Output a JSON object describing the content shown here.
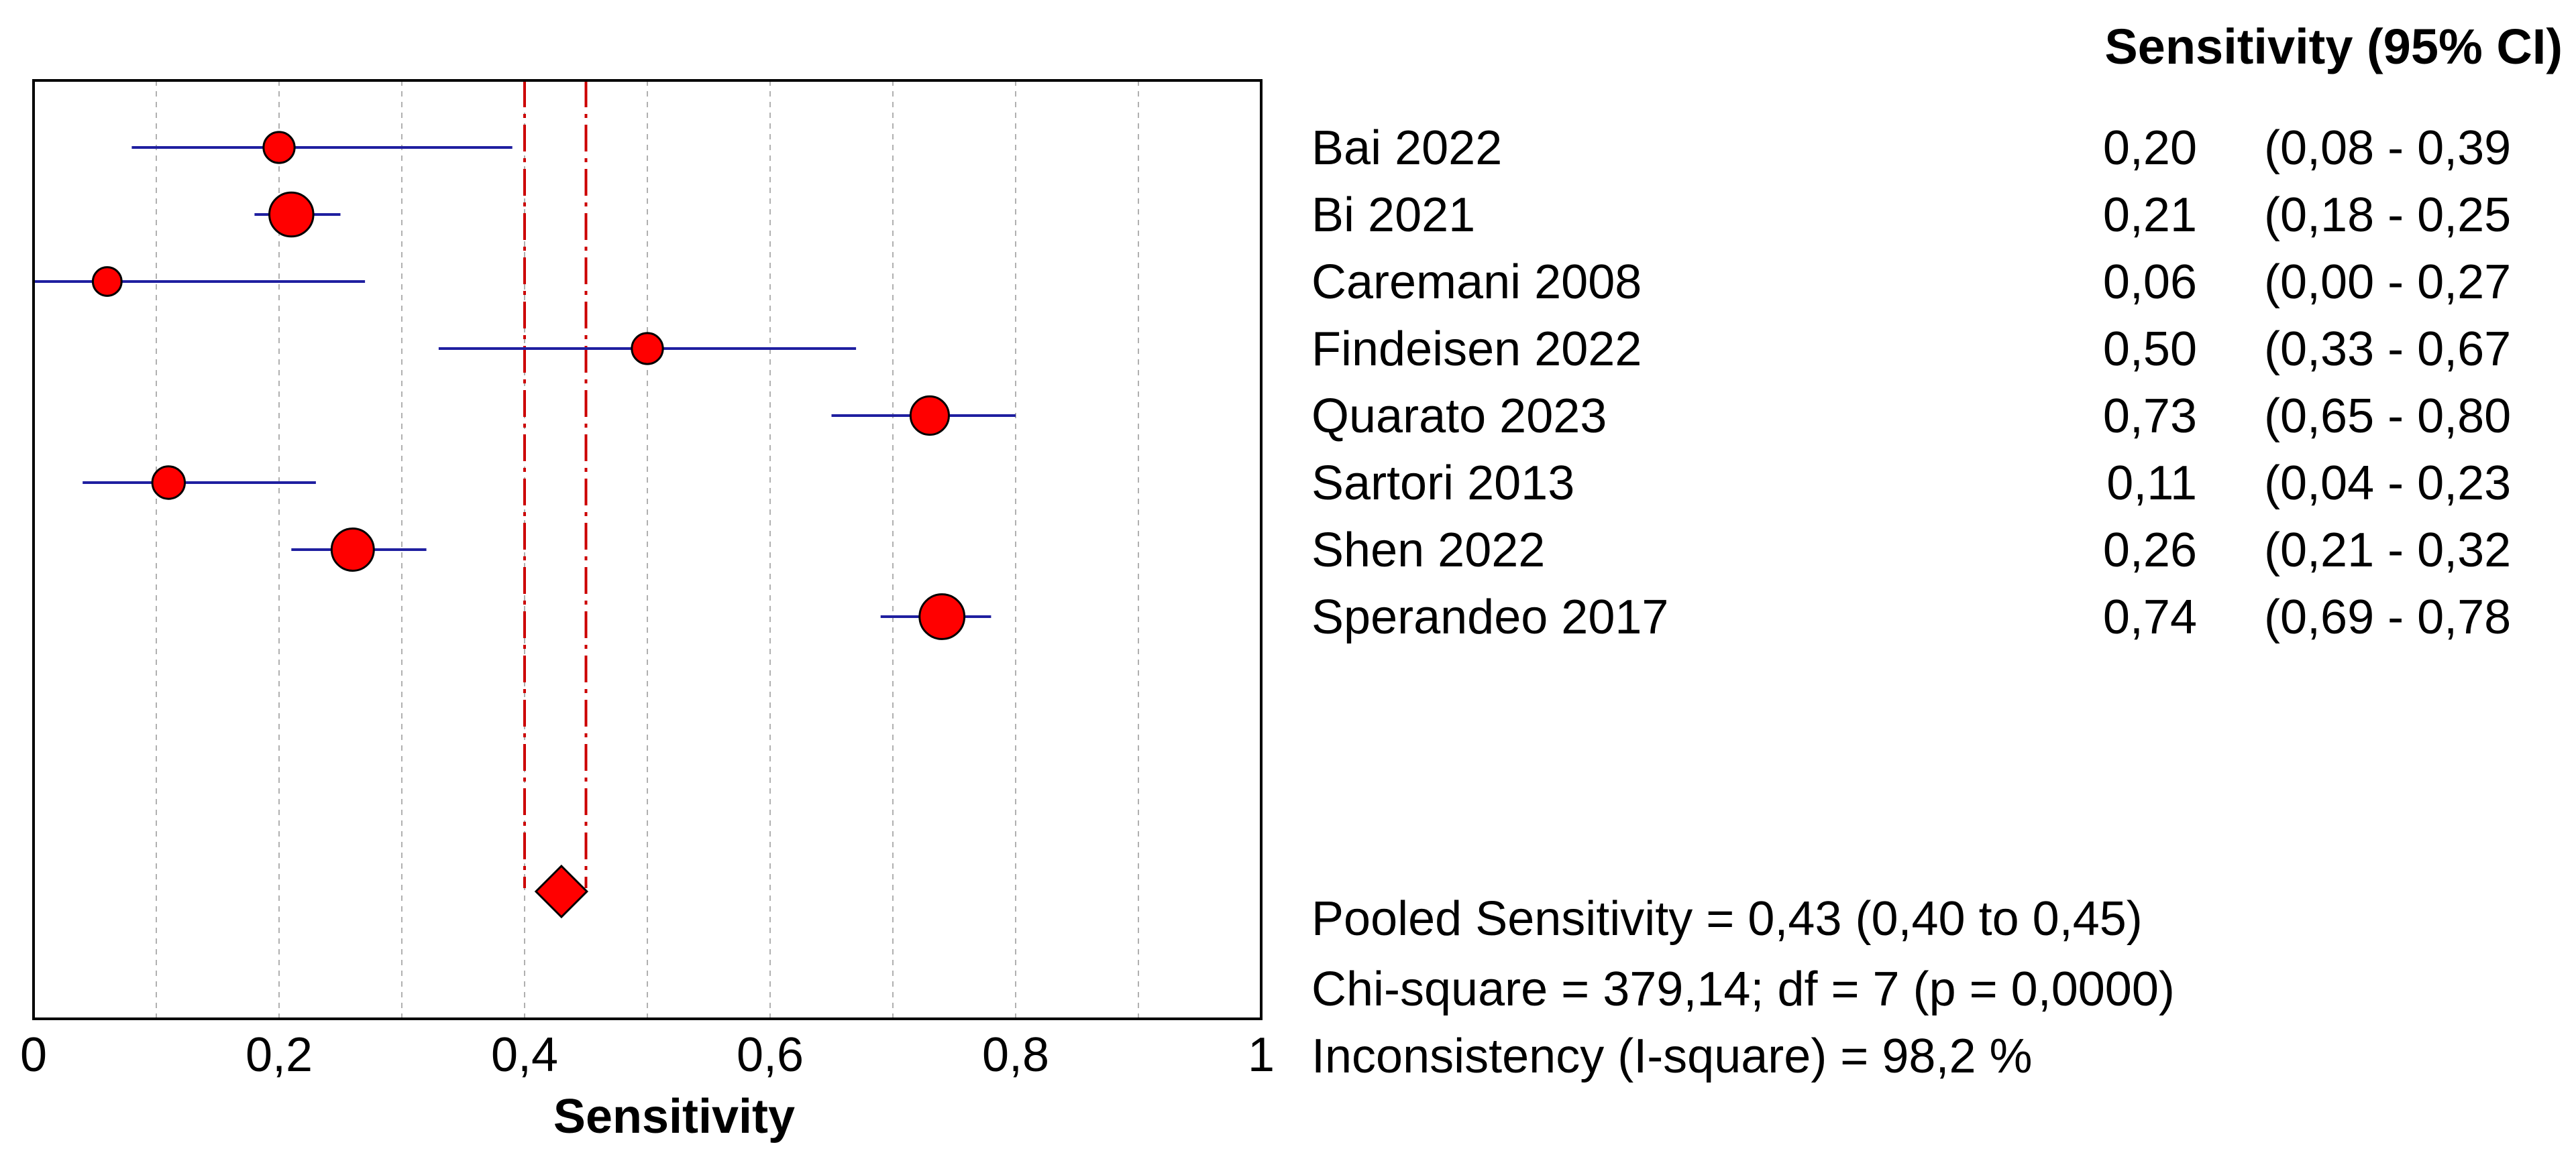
{
  "chart_data": {
    "type": "forest",
    "xlabel": "Sensitivity",
    "xlim": [
      0,
      1
    ],
    "xticks": [
      0,
      0.2,
      0.4,
      0.6,
      0.8,
      1
    ],
    "xtick_labels": [
      "0",
      "0,2",
      "0,4",
      "0,6",
      "0,8",
      "1"
    ],
    "grid": true,
    "column_header": "Sensitivity (95% CI)",
    "colors": {
      "marker": "#ff0000",
      "ci_line": "#1f1fa0",
      "pooled_line": "#cc0000",
      "grid": "#b0b0b0"
    },
    "studies": [
      {
        "name": "Bai 2022",
        "value": 0.2,
        "lower": 0.08,
        "upper": 0.39,
        "value_label": "0,20",
        "ci_label": "(0,08 - 0,39",
        "weight": 1.2
      },
      {
        "name": "Bi 2021",
        "value": 0.21,
        "lower": 0.18,
        "upper": 0.25,
        "value_label": "0,21",
        "ci_label": "(0,18 - 0,25",
        "weight": 3.6
      },
      {
        "name": "Caremani 2008",
        "value": 0.06,
        "lower": 0.0,
        "upper": 0.27,
        "value_label": "0,06",
        "ci_label": "(0,00 - 0,27",
        "weight": 0.9
      },
      {
        "name": "Findeisen 2022",
        "value": 0.5,
        "lower": 0.33,
        "upper": 0.67,
        "value_label": "0,50",
        "ci_label": "(0,33 - 0,67",
        "weight": 1.2
      },
      {
        "name": "Quarato 2023",
        "value": 0.73,
        "lower": 0.65,
        "upper": 0.8,
        "value_label": "0,73",
        "ci_label": "(0,65 - 0,80",
        "weight": 2.4
      },
      {
        "name": "Sartori 2013",
        "value": 0.11,
        "lower": 0.04,
        "upper": 0.23,
        "value_label": "0,11",
        "ci_label": "(0,04 - 0,23",
        "weight": 1.4
      },
      {
        "name": "Shen 2022",
        "value": 0.26,
        "lower": 0.21,
        "upper": 0.32,
        "value_label": "0,26",
        "ci_label": "(0,21 - 0,32",
        "weight": 3.2
      },
      {
        "name": "Sperandeo 2017",
        "value": 0.74,
        "lower": 0.69,
        "upper": 0.78,
        "value_label": "0,74",
        "ci_label": "(0,69 - 0,78",
        "weight": 3.8
      }
    ],
    "pooled": {
      "value": 0.43,
      "lower": 0.4,
      "upper": 0.45
    },
    "stats": [
      "Pooled Sensitivity = 0,43 (0,40 to 0,45)",
      "Chi-square = 379,14; df =  7 (p = 0,0000)",
      "Inconsistency (I-square) = 98,2 %"
    ]
  }
}
